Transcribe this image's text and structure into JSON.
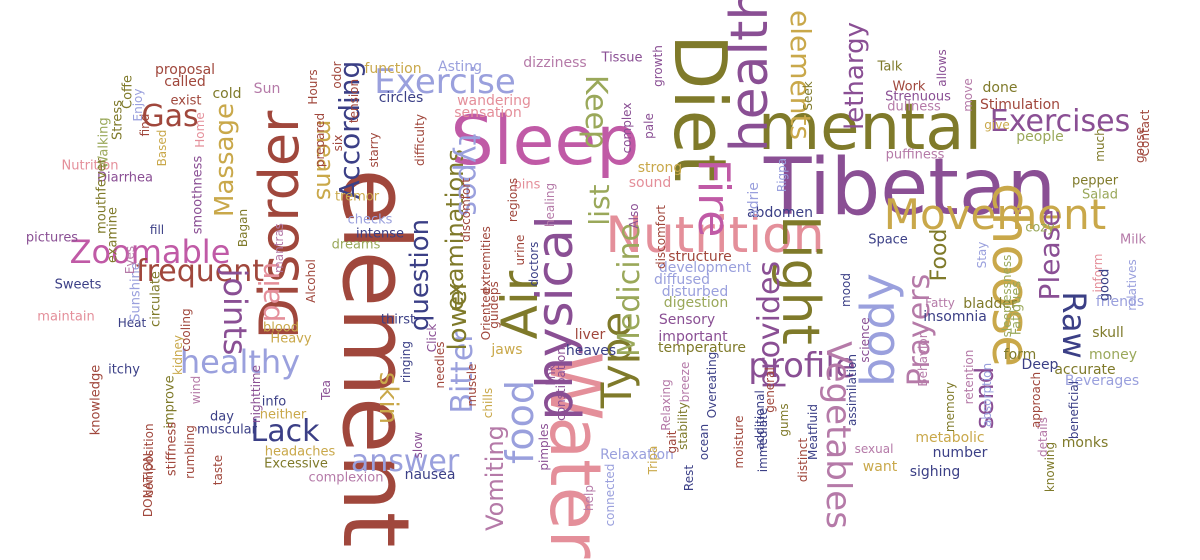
{
  "palette": {
    "brown": "#a0473c",
    "olive": "#7f7a2a",
    "gold": "#c9a84a",
    "purple": "#8a4f94",
    "magenta": "#c05aa6",
    "pink": "#e48f9a",
    "lavender": "#9aa0dd",
    "navy": "#3b3f86",
    "green": "#9aa85a",
    "mauve": "#b57aa8"
  },
  "words": [
    {
      "text": "Tibetan",
      "color": "purple",
      "rot": 0
    },
    {
      "text": "mental",
      "color": "olive",
      "rot": 0
    },
    {
      "text": "element",
      "color": "brown",
      "rot": 90
    },
    {
      "text": "Sleep",
      "color": "magenta",
      "rot": 0
    },
    {
      "text": "Diet",
      "color": "olive",
      "rot": 90
    },
    {
      "text": "health",
      "color": "purple",
      "rot": -90
    },
    {
      "text": "Nutrition",
      "color": "pink",
      "rot": 0
    },
    {
      "text": "Water",
      "color": "pink",
      "rot": 90
    },
    {
      "text": "Disorder",
      "color": "brown",
      "rot": -90
    },
    {
      "text": "physical",
      "color": "purple",
      "rot": -90
    },
    {
      "text": "Movement",
      "color": "gold",
      "rot": 0
    },
    {
      "text": "Light",
      "color": "olive",
      "rot": 90
    },
    {
      "text": "choose",
      "color": "gold",
      "rot": 90
    },
    {
      "text": "Exercise",
      "color": "lavender",
      "rot": 0
    },
    {
      "text": "Exercises",
      "color": "purple",
      "rot": 0
    },
    {
      "text": "Zoomable",
      "color": "magenta",
      "rot": 0
    },
    {
      "text": "frequent",
      "color": "brown",
      "rot": 0
    },
    {
      "text": "healthy",
      "color": "lavender",
      "rot": 0
    },
    {
      "text": "answer",
      "color": "lavender",
      "rot": 0
    },
    {
      "text": "Lack",
      "color": "navy",
      "rot": 0
    },
    {
      "text": "Air",
      "color": "olive",
      "rot": -90
    },
    {
      "text": "body",
      "color": "lavender",
      "rot": -90
    },
    {
      "text": "profile",
      "color": "purple",
      "rot": 0
    },
    {
      "text": "Vegetables",
      "color": "mauve",
      "rot": 90
    },
    {
      "text": "Fire",
      "color": "magenta",
      "rot": 90
    },
    {
      "text": "Gas",
      "color": "brown",
      "rot": 0
    },
    {
      "text": "Massage",
      "color": "gold",
      "rot": -90
    },
    {
      "text": "According",
      "color": "navy",
      "rot": -90
    },
    {
      "text": "question",
      "color": "navy",
      "rot": -90
    },
    {
      "text": "examinations",
      "color": "olive",
      "rot": -90
    },
    {
      "text": "lethargy",
      "color": "purple",
      "rot": -90
    },
    {
      "text": "Type",
      "color": "olive",
      "rot": -90
    },
    {
      "text": "Medicine",
      "color": "green",
      "rot": -90
    },
    {
      "text": "food",
      "color": "lavender",
      "rot": -90
    },
    {
      "text": "Vomiting",
      "color": "mauve",
      "rot": -90
    },
    {
      "text": "Raw",
      "color": "navy",
      "rot": 90
    },
    {
      "text": "Please",
      "color": "purple",
      "rot": -90
    },
    {
      "text": "Prayers",
      "color": "mauve",
      "rot": -90
    },
    {
      "text": "send",
      "color": "purple",
      "rot": -90
    },
    {
      "text": "Food",
      "color": "olive",
      "rot": -90
    },
    {
      "text": "Keep",
      "color": "green",
      "rot": 90
    },
    {
      "text": "provides",
      "color": "purple",
      "rot": -90
    },
    {
      "text": "Bitter",
      "color": "lavender",
      "rot": -90
    },
    {
      "text": "joints",
      "color": "purple",
      "rot": 90
    },
    {
      "text": "list",
      "color": "green",
      "rot": -90
    },
    {
      "text": "pain",
      "color": "pink",
      "rot": -90
    },
    {
      "text": "lower",
      "color": "olive",
      "rot": -90
    },
    {
      "text": "skin",
      "color": "gold",
      "rot": 90
    },
    {
      "text": "types",
      "color": "lavender",
      "rot": 90
    },
    {
      "text": "elements",
      "color": "gold",
      "rot": 90
    },
    {
      "text": "means",
      "color": "gold",
      "rot": 90
    },
    {
      "text": "heaves",
      "color": "navy",
      "rot": 0
    },
    {
      "text": "Talk",
      "color": "olive",
      "rot": 0
    },
    {
      "text": "Work",
      "color": "brown",
      "rot": 0
    },
    {
      "text": "done",
      "color": "olive",
      "rot": 0
    },
    {
      "text": "Strenuous",
      "color": "purple",
      "rot": 0
    },
    {
      "text": "dullness",
      "color": "mauve",
      "rot": 0
    },
    {
      "text": "Stimulation",
      "color": "brown",
      "rot": 0
    },
    {
      "text": "puffiness",
      "color": "mauve",
      "rot": 0
    },
    {
      "text": "people",
      "color": "green",
      "rot": 0
    },
    {
      "text": "pepper",
      "color": "olive",
      "rot": 0
    },
    {
      "text": "Salad",
      "color": "green",
      "rot": 0
    },
    {
      "text": "cozy",
      "color": "green",
      "rot": 0
    },
    {
      "text": "Milk",
      "color": "mauve",
      "rot": 0
    },
    {
      "text": "friends",
      "color": "lavender",
      "rot": 0
    },
    {
      "text": "skull",
      "color": "olive",
      "rot": 0
    },
    {
      "text": "money",
      "color": "green",
      "rot": 0
    },
    {
      "text": "accurate",
      "color": "olive",
      "rot": 0
    },
    {
      "text": "Beverages",
      "color": "lavender",
      "rot": 0
    },
    {
      "text": "Deep",
      "color": "navy",
      "rot": 0
    },
    {
      "text": "form",
      "color": "olive",
      "rot": 0
    },
    {
      "text": "monks",
      "color": "olive",
      "rot": 0
    },
    {
      "text": "number",
      "color": "navy",
      "rot": 0
    },
    {
      "text": "sighing",
      "color": "navy",
      "rot": 0
    },
    {
      "text": "metabolic",
      "color": "gold",
      "rot": 0
    },
    {
      "text": "want",
      "color": "gold",
      "rot": 0
    },
    {
      "text": "Space",
      "color": "navy",
      "rot": 0
    },
    {
      "text": "insomnia",
      "color": "navy",
      "rot": 0
    },
    {
      "text": "bladder",
      "color": "olive",
      "rot": 0
    },
    {
      "text": "abdomen",
      "color": "navy",
      "rot": 0
    },
    {
      "text": "proposal",
      "color": "brown",
      "rot": 0
    },
    {
      "text": "called",
      "color": "brown",
      "rot": 0
    },
    {
      "text": "exist",
      "color": "brown",
      "rot": 0
    },
    {
      "text": "cold",
      "color": "olive",
      "rot": 0
    },
    {
      "text": "Sun",
      "color": "mauve",
      "rot": 0
    },
    {
      "text": "function",
      "color": "gold",
      "rot": 0
    },
    {
      "text": "Asting",
      "color": "lavender",
      "rot": 0
    },
    {
      "text": "dizziness",
      "color": "mauve",
      "rot": 0
    },
    {
      "text": "Tissue",
      "color": "purple",
      "rot": 0
    },
    {
      "text": "circles",
      "color": "navy",
      "rot": 0
    },
    {
      "text": "wandering",
      "color": "pink",
      "rot": 0
    },
    {
      "text": "sensation",
      "color": "pink",
      "rot": 0
    },
    {
      "text": "Nutrition",
      "color": "pink",
      "rot": 0
    },
    {
      "text": "Diarrhea",
      "color": "purple",
      "rot": 0
    },
    {
      "text": "pictures",
      "color": "purple",
      "rot": 0
    },
    {
      "text": "Sweets",
      "color": "navy",
      "rot": 0
    },
    {
      "text": "maintain",
      "color": "pink",
      "rot": 0
    },
    {
      "text": "Heat",
      "color": "navy",
      "rot": 0
    },
    {
      "text": "itchy",
      "color": "navy",
      "rot": 0
    },
    {
      "text": "day",
      "color": "navy",
      "rot": 0
    },
    {
      "text": "muscular",
      "color": "navy",
      "rot": 0
    },
    {
      "text": "info",
      "color": "navy",
      "rot": 0
    },
    {
      "text": "neither",
      "color": "gold",
      "rot": 0
    },
    {
      "text": "headaches",
      "color": "gold",
      "rot": 0
    },
    {
      "text": "Excessive",
      "color": "olive",
      "rot": 0
    },
    {
      "text": "complexion",
      "color": "mauve",
      "rot": 0
    },
    {
      "text": "nausea",
      "color": "navy",
      "rot": 0
    },
    {
      "text": "Relaxation",
      "color": "lavender",
      "rot": 0
    },
    {
      "text": "Sensory",
      "color": "purple",
      "rot": 0
    },
    {
      "text": "important",
      "color": "purple",
      "rot": 0
    },
    {
      "text": "temperature",
      "color": "olive",
      "rot": 0
    },
    {
      "text": "liver",
      "color": "brown",
      "rot": 0
    },
    {
      "text": "jaws",
      "color": "gold",
      "rot": 0
    },
    {
      "text": "structure",
      "color": "brown",
      "rot": 0
    },
    {
      "text": "development",
      "color": "lavender",
      "rot": 0
    },
    {
      "text": "diffused",
      "color": "lavender",
      "rot": 0
    },
    {
      "text": "disturbed",
      "color": "lavender",
      "rot": 0
    },
    {
      "text": "digestion",
      "color": "green",
      "rot": 0
    },
    {
      "text": "sound",
      "color": "pink",
      "rot": 0
    },
    {
      "text": "strong",
      "color": "gold",
      "rot": 0
    },
    {
      "text": "pins",
      "color": "pink",
      "rot": 0
    },
    {
      "text": "checks",
      "color": "lavender",
      "rot": 0
    },
    {
      "text": "tremor",
      "color": "gold",
      "rot": 0
    },
    {
      "text": "dreams",
      "color": "green",
      "rot": 0
    },
    {
      "text": "blood",
      "color": "gold",
      "rot": 0
    },
    {
      "text": "Heavy",
      "color": "gold",
      "rot": 0
    },
    {
      "text": "thirst",
      "color": "navy",
      "rot": 0
    },
    {
      "text": "intense",
      "color": "navy",
      "rot": 0
    },
    {
      "text": "Stress",
      "color": "olive",
      "rot": -90
    },
    {
      "text": "Coffe",
      "color": "olive",
      "rot": -90
    },
    {
      "text": "Walking",
      "color": "green",
      "rot": -90
    },
    {
      "text": "mouthfever",
      "color": "olive",
      "rot": -90
    },
    {
      "text": "examine",
      "color": "olive",
      "rot": -90
    },
    {
      "text": "smoothness",
      "color": "purple",
      "rot": -90
    },
    {
      "text": "Bagan",
      "color": "olive",
      "rot": -90
    },
    {
      "text": "mantras",
      "color": "mauve",
      "rot": -90
    },
    {
      "text": "Sunshine",
      "color": "lavender",
      "rot": -90
    },
    {
      "text": "circulate",
      "color": "olive",
      "rot": -90
    },
    {
      "text": "knowledge",
      "color": "brown",
      "rot": -90
    },
    {
      "text": "improve",
      "color": "olive",
      "rot": -90
    },
    {
      "text": "stiffness",
      "color": "brown",
      "rot": -90
    },
    {
      "text": "composition",
      "color": "brown",
      "rot": -90
    },
    {
      "text": "DONATION",
      "color": "brown",
      "rot": -90
    },
    {
      "text": "rumbling",
      "color": "brown",
      "rot": -90
    },
    {
      "text": "taste",
      "color": "brown",
      "rot": -90
    },
    {
      "text": "nighttime",
      "color": "purple",
      "rot": -90
    },
    {
      "text": "Tea",
      "color": "purple",
      "rot": -90
    },
    {
      "text": "Alcohol",
      "color": "brown",
      "rot": -90
    },
    {
      "text": "Hours",
      "color": "brown",
      "rot": -90
    },
    {
      "text": "prepared",
      "color": "brown",
      "rot": -90
    },
    {
      "text": "odor",
      "color": "brown",
      "rot": -90
    },
    {
      "text": "six",
      "color": "brown",
      "rot": -90
    },
    {
      "text": "tension",
      "color": "brown",
      "rot": -90
    },
    {
      "text": "starry",
      "color": "brown",
      "rot": -90
    },
    {
      "text": "difficulty",
      "color": "brown",
      "rot": -90
    },
    {
      "text": "discomfort",
      "color": "brown",
      "rot": -90
    },
    {
      "text": "extremities",
      "color": "brown",
      "rot": -90
    },
    {
      "text": "guideps",
      "color": "brown",
      "rot": -90
    },
    {
      "text": "doctors",
      "color": "navy",
      "rot": -90
    },
    {
      "text": "urine",
      "color": "brown",
      "rot": -90
    },
    {
      "text": "healing",
      "color": "mauve",
      "rot": -90
    },
    {
      "text": "Oriented",
      "color": "brown",
      "rot": -90
    },
    {
      "text": "chills",
      "color": "gold",
      "rot": -90
    },
    {
      "text": "muscle",
      "color": "brown",
      "rot": -90
    },
    {
      "text": "needles",
      "color": "brown",
      "rot": -90
    },
    {
      "text": "ringing",
      "color": "navy",
      "rot": -90
    },
    {
      "text": "slow",
      "color": "purple",
      "rot": -90
    },
    {
      "text": "Click",
      "color": "purple",
      "rot": -90
    },
    {
      "text": "link",
      "color": "purple",
      "rot": -90
    },
    {
      "text": "constipation",
      "color": "purple",
      "rot": -90
    },
    {
      "text": "pimples",
      "color": "purple",
      "rot": -90
    },
    {
      "text": "complex",
      "color": "purple",
      "rot": -90
    },
    {
      "text": "pale",
      "color": "purple",
      "rot": -90
    },
    {
      "text": "growth",
      "color": "purple",
      "rot": -90
    },
    {
      "text": "Also",
      "color": "purple",
      "rot": -90
    },
    {
      "text": "discomfort",
      "color": "brown",
      "rot": -90
    },
    {
      "text": "Overeating",
      "color": "navy",
      "rot": -90
    },
    {
      "text": "ocean",
      "color": "navy",
      "rot": -90
    },
    {
      "text": "Rest",
      "color": "navy",
      "rot": -90
    },
    {
      "text": "gait",
      "color": "brown",
      "rot": -90
    },
    {
      "text": "stability",
      "color": "olive",
      "rot": -90
    },
    {
      "text": "Tripa",
      "color": "gold",
      "rot": -90
    },
    {
      "text": "connected",
      "color": "lavender",
      "rot": -90
    },
    {
      "text": "help",
      "color": "mauve",
      "rot": -90
    },
    {
      "text": "Relaxing",
      "color": "mauve",
      "rot": -90
    },
    {
      "text": "breeze",
      "color": "mauve",
      "rot": -90
    },
    {
      "text": "moisture",
      "color": "brown",
      "rot": -90
    },
    {
      "text": "general",
      "color": "brown",
      "rot": -90
    },
    {
      "text": "additional",
      "color": "navy",
      "rot": -90
    },
    {
      "text": "immediate",
      "color": "navy",
      "rot": -90
    },
    {
      "text": "distinct",
      "color": "brown",
      "rot": -90
    },
    {
      "text": "Meatfluid",
      "color": "navy",
      "rot": -90
    },
    {
      "text": "gums",
      "color": "olive",
      "rot": -90
    },
    {
      "text": "assimilation",
      "color": "navy",
      "rot": -90
    },
    {
      "text": "science",
      "color": "purple",
      "rot": -90
    },
    {
      "text": "sexual",
      "color": "mauve",
      "rot": 0
    },
    {
      "text": "Behavior",
      "color": "mauve",
      "rot": -90
    },
    {
      "text": "memory",
      "color": "olive",
      "rot": -90
    },
    {
      "text": "retention",
      "color": "mauve",
      "rot": -90
    },
    {
      "text": "absorption",
      "color": "lavender",
      "rot": -90
    },
    {
      "text": "Fatty",
      "color": "mauve",
      "rot": 0
    },
    {
      "text": "Stay",
      "color": "lavender",
      "rot": -90
    },
    {
      "text": "sleeplessness",
      "color": "green",
      "rot": -90
    },
    {
      "text": "Fatigues",
      "color": "green",
      "rot": -90
    },
    {
      "text": "approach",
      "color": "brown",
      "rot": -90
    },
    {
      "text": "details",
      "color": "mauve",
      "rot": -90
    },
    {
      "text": "knowing",
      "color": "olive",
      "rot": -90
    },
    {
      "text": "beneficial",
      "color": "navy",
      "rot": -90
    },
    {
      "text": "relatives",
      "color": "lavender",
      "rot": -90
    },
    {
      "text": "inform",
      "color": "pink",
      "rot": -90
    },
    {
      "text": "goose",
      "color": "brown",
      "rot": -90
    },
    {
      "text": "Contact",
      "color": "brown",
      "rot": -90
    },
    {
      "text": "much",
      "color": "olive",
      "rot": -90
    },
    {
      "text": "give",
      "color": "gold",
      "rot": 0
    },
    {
      "text": "move",
      "color": "mauve",
      "rot": -90
    },
    {
      "text": "allows",
      "color": "purple",
      "rot": -90
    },
    {
      "text": "adrie",
      "color": "lavender",
      "rot": -90
    },
    {
      "text": "Rigpa",
      "color": "lavender",
      "rot": -90
    },
    {
      "text": "Seek",
      "color": "olive",
      "rot": -90
    },
    {
      "text": "regions",
      "color": "brown",
      "rot": -90
    },
    {
      "text": "kidney",
      "color": "gold",
      "rot": -90
    },
    {
      "text": "cooling",
      "color": "brown",
      "rot": -90
    },
    {
      "text": "Home",
      "color": "pink",
      "rot": -90
    },
    {
      "text": "Based",
      "color": "gold",
      "rot": -90
    },
    {
      "text": "find",
      "color": "brown",
      "rot": -90
    },
    {
      "text": "Enjoy",
      "color": "lavender",
      "rot": -90
    },
    {
      "text": "fill",
      "color": "navy",
      "rot": 0
    },
    {
      "text": "Eyes",
      "color": "mauve",
      "rot": -90
    },
    {
      "text": "wind",
      "color": "mauve",
      "rot": -90
    },
    {
      "text": "good",
      "color": "navy",
      "rot": -90
    },
    {
      "text": "mood",
      "color": "navy",
      "rot": -90
    }
  ]
}
